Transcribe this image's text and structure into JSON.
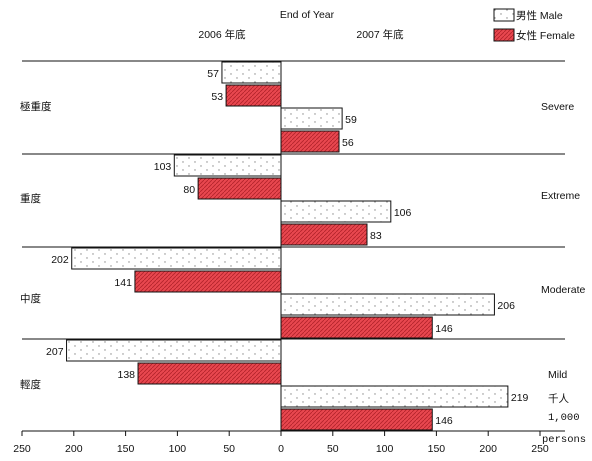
{
  "chart_data": {
    "type": "bar",
    "orientation": "horizontal-diverging",
    "header_center": "End of Year",
    "left_year_label": "2006 年底",
    "right_year_label": "2007 年底",
    "legend": {
      "placement": "top-right",
      "male": "男性 Male",
      "female": "女性 Female"
    },
    "categories": [
      {
        "zh": "極重度",
        "en": "Severe"
      },
      {
        "zh": "重度",
        "en": "Extreme"
      },
      {
        "zh": "中度",
        "en": "Moderate"
      },
      {
        "zh": "輕度",
        "en": "Mild"
      }
    ],
    "series": [
      {
        "name": "男性 Male",
        "year": "2006 年底",
        "values": [
          57,
          103,
          202,
          207
        ]
      },
      {
        "name": "女性 Female",
        "year": "2006 年底",
        "values": [
          53,
          80,
          141,
          138
        ]
      },
      {
        "name": "男性 Male",
        "year": "2007 年底",
        "values": [
          59,
          106,
          206,
          219
        ]
      },
      {
        "name": "女性 Female",
        "year": "2007 年底",
        "values": [
          56,
          83,
          146,
          146
        ]
      }
    ],
    "xlim": [
      -250,
      250
    ],
    "x_ticks": [
      "250",
      "200",
      "150",
      "100",
      "50",
      "0",
      "50",
      "100",
      "150",
      "200",
      "250"
    ],
    "unit_zh": "千人",
    "unit_en": "1,000",
    "unit_en2": "persons",
    "colors": {
      "female_fill": "#e8474f",
      "male_fill": "#ffffff",
      "outline": "#111111"
    }
  }
}
